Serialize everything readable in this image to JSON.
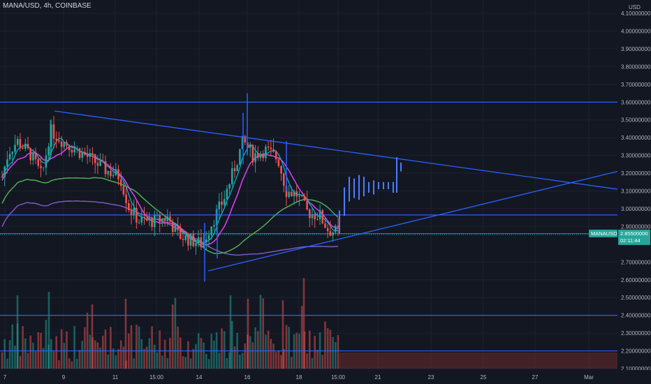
{
  "symbol_title": "MANA/USD, 4h, COINBASE",
  "currency": "USD",
  "price_ticks": [
    "4.10000000",
    "4.00000000",
    "3.90000000",
    "3.80000000",
    "3.70000000",
    "3.60000000",
    "3.50000000",
    "3.40000000",
    "3.30000000",
    "3.20000000",
    "3.10000000",
    "3.00000000",
    "2.90000000",
    "2.70000000",
    "2.60000000",
    "2.50000000",
    "2.40000000",
    "2.30000000",
    "2.20000000",
    "2.10000000"
  ],
  "price_tick_values": [
    4.1,
    4.0,
    3.9,
    3.8,
    3.7,
    3.6,
    3.5,
    3.4,
    3.3,
    3.2,
    3.1,
    3.0,
    2.9,
    2.7,
    2.6,
    2.5,
    2.4,
    2.3,
    2.2,
    2.1
  ],
  "time_ticks": [
    "7",
    "9",
    "11",
    "15:00",
    "14",
    "16",
    "18",
    "15:00",
    "21",
    "23",
    "25",
    "27",
    "Mar"
  ],
  "last_price": {
    "ticker": "MANAUSD",
    "price": "2.85500000",
    "countdown": "02:11:44",
    "value": 2.855
  },
  "horizontal_levels": [
    3.6,
    2.965,
    2.86,
    2.4,
    2.2
  ],
  "colors": {
    "background": "#131722",
    "up": "#26a69a",
    "down": "#ef5350",
    "drawing": "#2962ff",
    "projection": "#4c7dff",
    "last_price": "#26a69a",
    "ma_fast": "#e040fb",
    "ma_mid": "#00bcd4",
    "ma_slow": "#4caf50",
    "ma_slowest": "#7e57c2"
  },
  "price_scale": {
    "min": 2.1,
    "max": 4.1
  }
}
